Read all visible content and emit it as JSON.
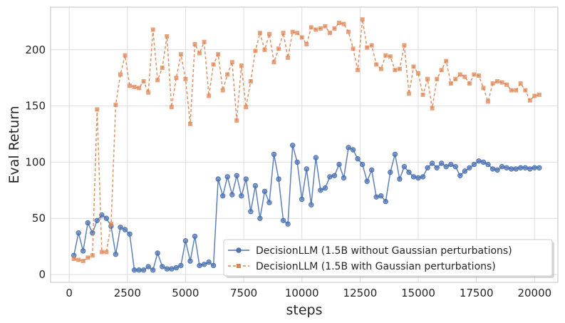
{
  "chart_data": {
    "type": "line",
    "title": "",
    "xlabel": "steps",
    "ylabel": "Eval Return",
    "xlim": [
      -800,
      21000
    ],
    "ylim": [
      -7,
      238
    ],
    "xticks": [
      0,
      2500,
      5000,
      7500,
      10000,
      12500,
      15000,
      17500,
      20000
    ],
    "yticks": [
      0,
      50,
      100,
      150,
      200
    ],
    "grid": true,
    "legend_position": "lower-right",
    "series": [
      {
        "name": "DecisionLLM (1.5B without Gaussian perturbations)",
        "color": "#4c72b0",
        "linestyle": "solid",
        "marker": "circle",
        "x": [
          200,
          400,
          600,
          800,
          1000,
          1200,
          1400,
          1600,
          1800,
          2000,
          2200,
          2400,
          2600,
          2800,
          3000,
          3200,
          3400,
          3600,
          3800,
          4000,
          4200,
          4400,
          4600,
          4800,
          5000,
          5200,
          5400,
          5600,
          5800,
          6000,
          6200,
          6400,
          6600,
          6800,
          7000,
          7200,
          7400,
          7600,
          7800,
          8000,
          8200,
          8400,
          8600,
          8800,
          9000,
          9200,
          9400,
          9600,
          9800,
          10000,
          10200,
          10400,
          10600,
          10800,
          11000,
          11200,
          11400,
          11600,
          11800,
          12000,
          12200,
          12400,
          12600,
          12800,
          13000,
          13200,
          13400,
          13600,
          13800,
          14000,
          14200,
          14400,
          14600,
          14800,
          15000,
          15200,
          15400,
          15600,
          15800,
          16000,
          16200,
          16400,
          16600,
          16800,
          17000,
          17200,
          17400,
          17600,
          17800,
          18000,
          18200,
          18400,
          18600,
          18800,
          19000,
          19200,
          19400,
          19600,
          19800,
          20000,
          20200
        ],
        "y": [
          17,
          37,
          21,
          46,
          37,
          48,
          53,
          50,
          43,
          18,
          42,
          40,
          36,
          4,
          4,
          4,
          7,
          4,
          19,
          7,
          5,
          5,
          6,
          8,
          30,
          12,
          34,
          8,
          9,
          11,
          8,
          85,
          70,
          87,
          71,
          88,
          70,
          85,
          56,
          79,
          50,
          74,
          64,
          107,
          85,
          48,
          45,
          115,
          100,
          67,
          94,
          62,
          104,
          75,
          77,
          87,
          88,
          98,
          86,
          113,
          111,
          103,
          98,
          83,
          93,
          69,
          70,
          65,
          91,
          107,
          85,
          96,
          91,
          87,
          86,
          87,
          95,
          99,
          95,
          99,
          96,
          98,
          96,
          88,
          92,
          95,
          98,
          101,
          100,
          98,
          94,
          93,
          96,
          95,
          94,
          94,
          95,
          95,
          94,
          95,
          95
        ]
      },
      {
        "name": "DecisionLLM (1.5B with Gaussian perturbations)",
        "color": "#dd8452",
        "linestyle": "dashed",
        "marker": "square",
        "x": [
          200,
          400,
          600,
          800,
          1000,
          1200,
          1400,
          1600,
          1800,
          2000,
          2200,
          2400,
          2600,
          2800,
          3000,
          3200,
          3400,
          3600,
          3800,
          4000,
          4200,
          4400,
          4600,
          4800,
          5000,
          5200,
          5400,
          5600,
          5800,
          6000,
          6200,
          6400,
          6600,
          6800,
          7000,
          7200,
          7400,
          7600,
          7800,
          8000,
          8200,
          8400,
          8600,
          8800,
          9000,
          9200,
          9400,
          9600,
          9800,
          10000,
          10200,
          10400,
          10600,
          10800,
          11000,
          11200,
          11400,
          11600,
          11800,
          12000,
          12200,
          12400,
          12600,
          12800,
          13000,
          13200,
          13400,
          13600,
          13800,
          14000,
          14200,
          14400,
          14600,
          14800,
          15000,
          15200,
          15400,
          15600,
          15800,
          16000,
          16200,
          16400,
          16600,
          16800,
          17000,
          17200,
          17400,
          17600,
          17800,
          18000,
          18200,
          18400,
          18600,
          18800,
          19000,
          19200,
          19400,
          19600,
          19800,
          20000,
          20200
        ],
        "y": [
          14,
          13,
          12,
          15,
          17,
          147,
          20,
          20,
          45,
          151,
          178,
          195,
          168,
          167,
          166,
          172,
          162,
          218,
          173,
          184,
          212,
          149,
          175,
          196,
          174,
          134,
          205,
          197,
          207,
          159,
          187,
          196,
          164,
          178,
          189,
          137,
          186,
          149,
          172,
          199,
          215,
          200,
          214,
          189,
          201,
          215,
          193,
          216,
          215,
          211,
          205,
          220,
          218,
          219,
          221,
          215,
          219,
          224,
          223,
          216,
          201,
          182,
          227,
          202,
          204,
          187,
          183,
          195,
          194,
          182,
          183,
          204,
          161,
          185,
          179,
          160,
          174,
          148,
          174,
          182,
          190,
          170,
          174,
          178,
          176,
          170,
          178,
          177,
          166,
          154,
          170,
          172,
          171,
          169,
          164,
          164,
          170,
          164,
          155,
          159,
          160
        ]
      }
    ]
  }
}
